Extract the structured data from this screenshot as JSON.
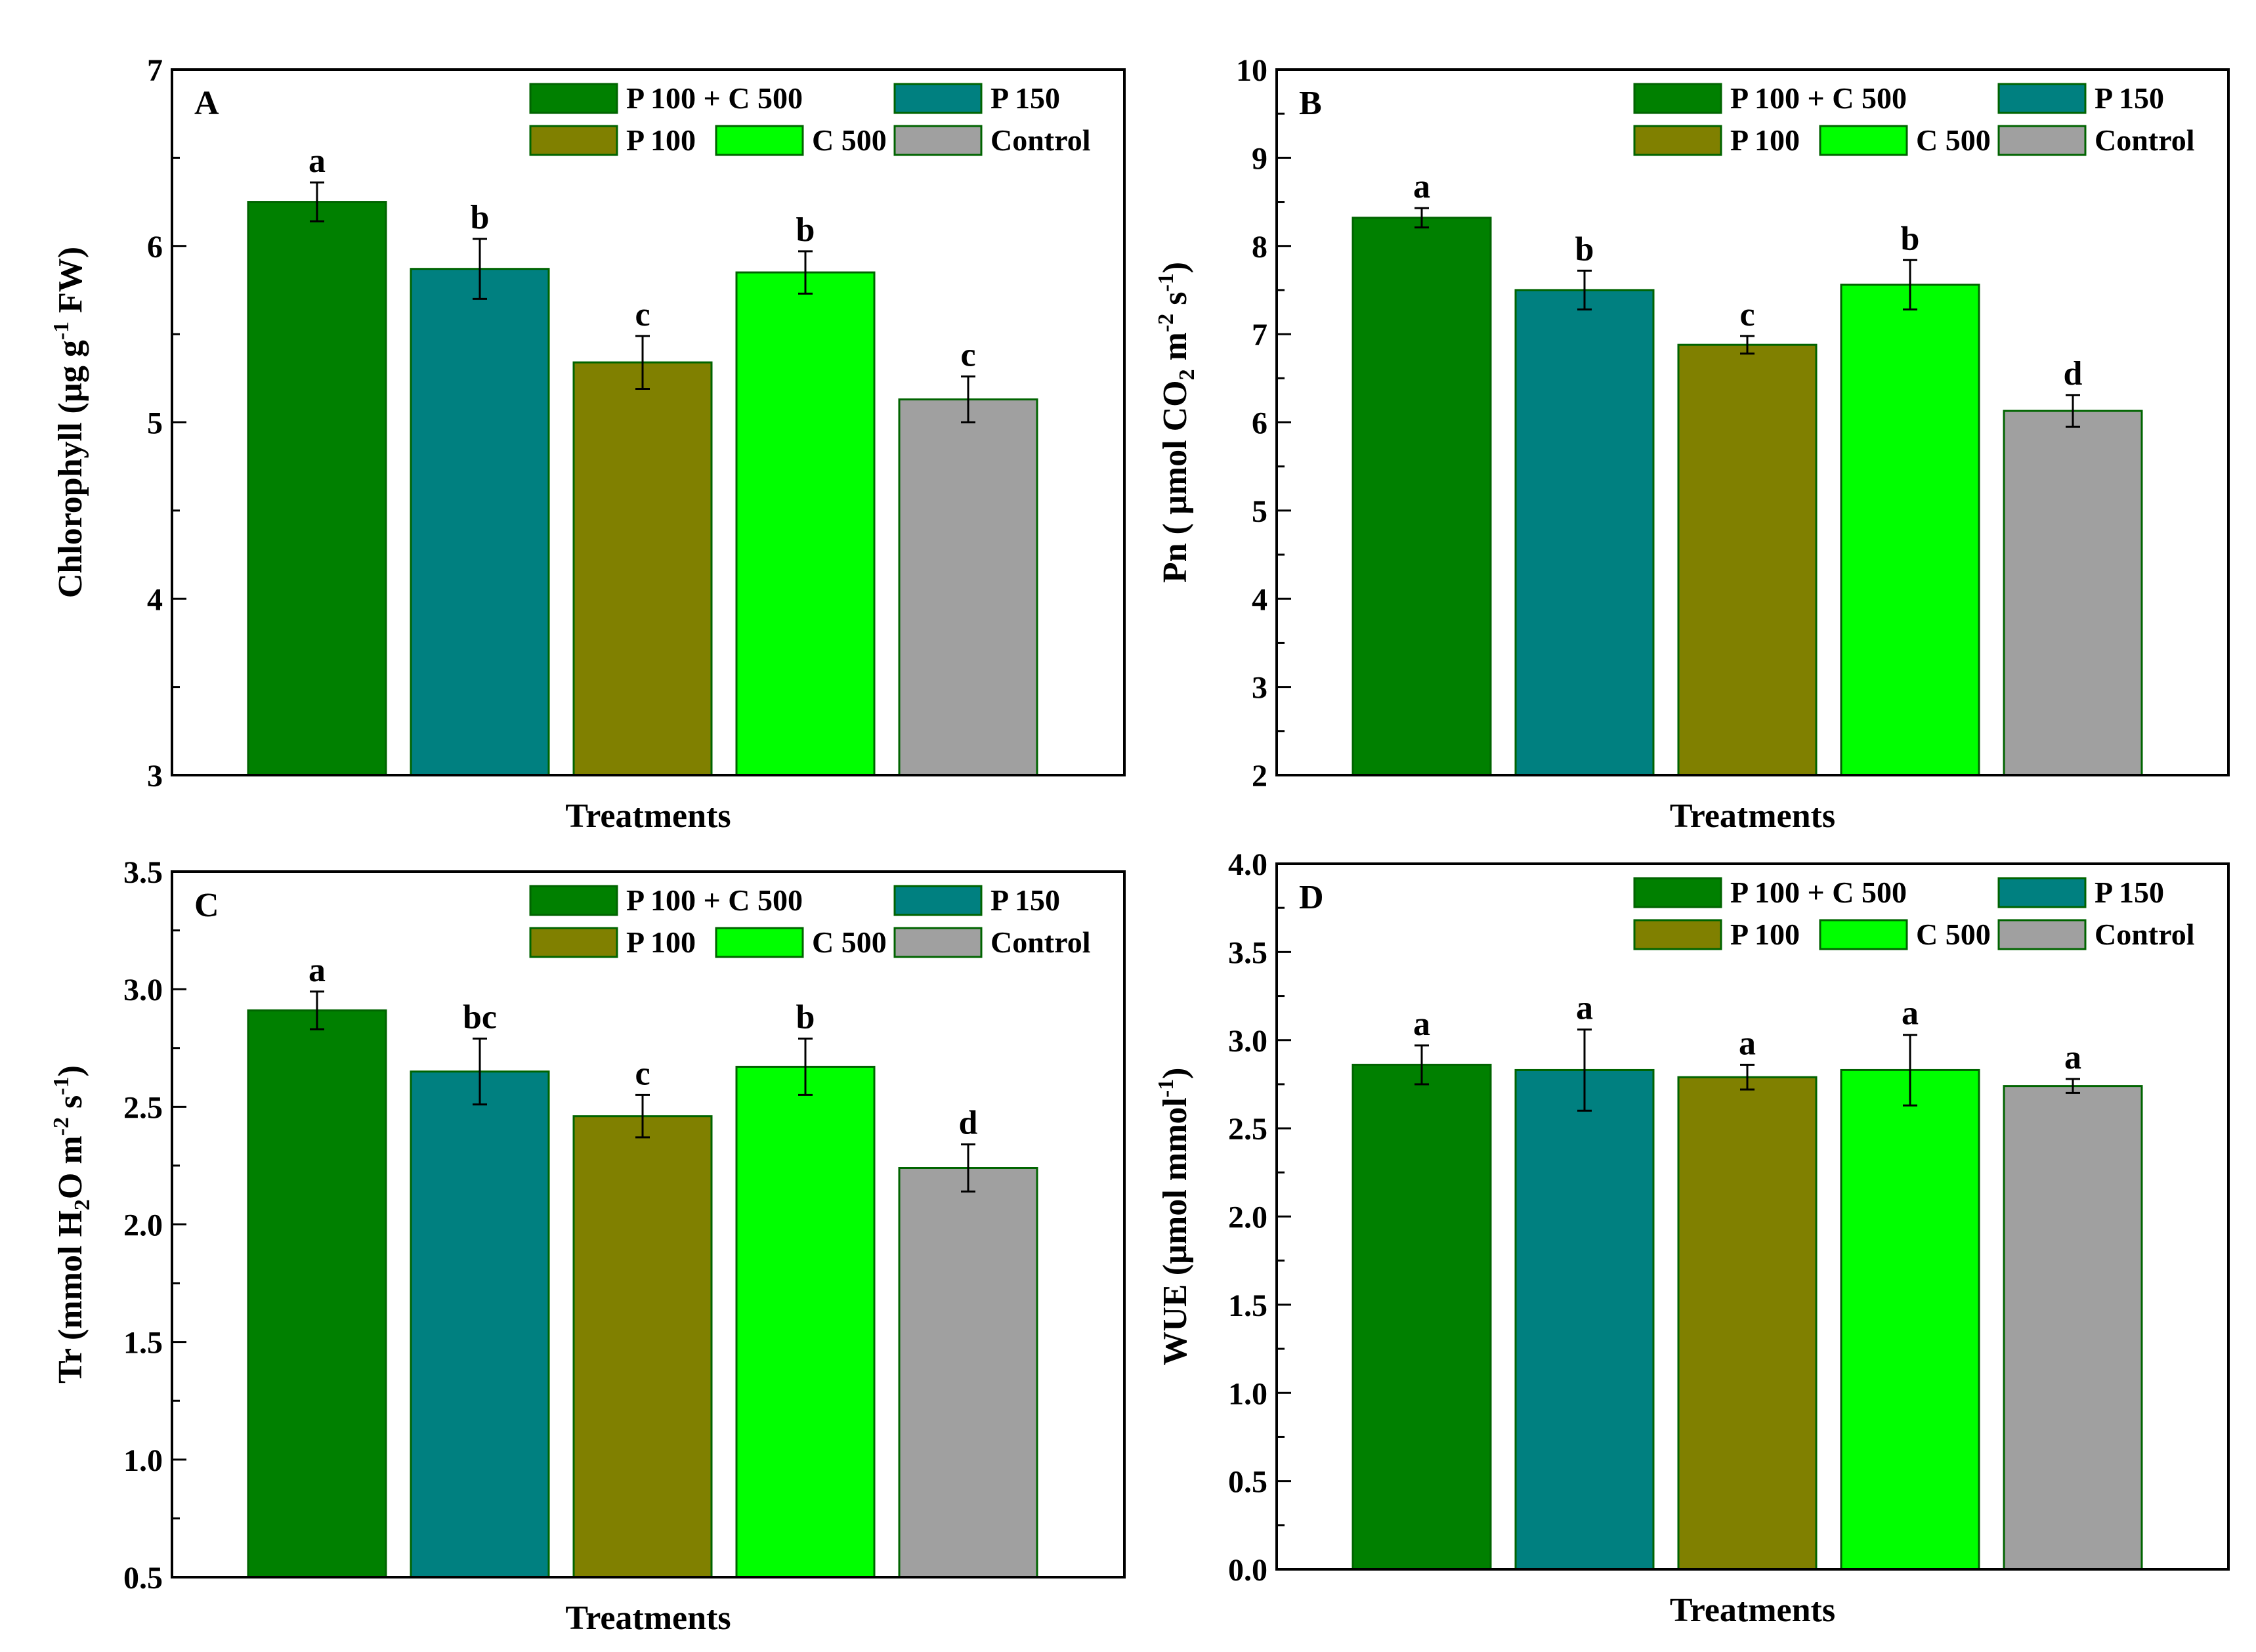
{
  "figure": {
    "legend_items": [
      {
        "label": "P 100 + C 500",
        "color": "#008000"
      },
      {
        "label": "P 150",
        "color": "#008080"
      },
      {
        "label": "P 100",
        "color": "#808000"
      },
      {
        "label": "C 500",
        "color": "#00ff00"
      },
      {
        "label": "Control",
        "color": "#a0a0a0"
      }
    ],
    "bar_border_color": "#006400"
  },
  "chart_data": [
    {
      "type": "bar",
      "panel": "A",
      "xlabel": "Treatments",
      "ylabel": {
        "main": "Chlorophyll (µg g",
        "sup": "-1",
        "tail": " FW)"
      },
      "categories": [
        "P 100 + C 500",
        "P 150",
        "P 100",
        "C 500",
        "Control"
      ],
      "values": [
        6.25,
        5.87,
        5.34,
        5.85,
        5.13
      ],
      "errors": [
        0.11,
        0.17,
        0.15,
        0.12,
        0.13
      ],
      "significance": [
        "a",
        "b",
        "c",
        "b",
        "c"
      ],
      "ylim": [
        3,
        7
      ],
      "yticks": [
        3,
        4,
        5,
        6,
        7
      ],
      "ytick_labels": [
        "3",
        "4",
        "5",
        "6",
        "7"
      ],
      "legend_position": "top-right"
    },
    {
      "type": "bar",
      "panel": "B",
      "xlabel": "Treatments",
      "ylabel": {
        "main": "Pn ( µmol CO",
        "sub": "2",
        "mid": " m",
        "sup": "-2",
        "mid2": " s",
        "sup2": "-1",
        "tail": ")"
      },
      "categories": [
        "P 100 + C 500",
        "P 150",
        "P 100",
        "C 500",
        "Control"
      ],
      "values": [
        8.32,
        7.5,
        6.88,
        7.56,
        6.13
      ],
      "errors": [
        0.11,
        0.22,
        0.1,
        0.28,
        0.18
      ],
      "significance": [
        "a",
        "b",
        "c",
        "b",
        "d"
      ],
      "ylim": [
        2,
        10
      ],
      "yticks": [
        2,
        3,
        4,
        5,
        6,
        7,
        8,
        9,
        10
      ],
      "ytick_labels": [
        "2",
        "3",
        "4",
        "5",
        "6",
        "7",
        "8",
        "9",
        "10"
      ],
      "legend_position": "top-right"
    },
    {
      "type": "bar",
      "panel": "C",
      "xlabel": "Treatments",
      "ylabel": {
        "main": "Tr (mmol H",
        "sub": "2",
        "mid": "O m",
        "sup": "-2",
        "mid2": " s",
        "sup2": "-1",
        "tail": ")"
      },
      "categories": [
        "P 100 + C 500",
        "P 150",
        "P 100",
        "C 500",
        "Control"
      ],
      "values": [
        2.91,
        2.65,
        2.46,
        2.67,
        2.24
      ],
      "errors": [
        0.08,
        0.14,
        0.09,
        0.12,
        0.1
      ],
      "significance": [
        "a",
        "bc",
        "c",
        "b",
        "d"
      ],
      "ylim": [
        0.5,
        3.5
      ],
      "yticks": [
        0.5,
        1.0,
        1.5,
        2.0,
        2.5,
        3.0,
        3.5
      ],
      "ytick_labels": [
        "0.5",
        "1.0",
        "1.5",
        "2.0",
        "2.5",
        "3.0",
        "3.5"
      ],
      "legend_position": "top-right"
    },
    {
      "type": "bar",
      "panel": "D",
      "xlabel": "Treatments",
      "ylabel": {
        "main": "WUE (µmol mmol",
        "sup": "-1",
        "tail": ")"
      },
      "categories": [
        "P 100 + C 500",
        "P 150",
        "P 100",
        "C 500",
        "Control"
      ],
      "values": [
        2.86,
        2.83,
        2.79,
        2.83,
        2.74
      ],
      "errors": [
        0.11,
        0.23,
        0.07,
        0.2,
        0.04
      ],
      "significance": [
        "a",
        "a",
        "a",
        "a",
        "a"
      ],
      "ylim": [
        0.0,
        4.0
      ],
      "yticks": [
        0.0,
        0.5,
        1.0,
        1.5,
        2.0,
        2.5,
        3.0,
        3.5,
        4.0
      ],
      "ytick_labels": [
        "0.0",
        "0.5",
        "1.0",
        "1.5",
        "2.0",
        "2.5",
        "3.0",
        "3.5",
        "4.0"
      ],
      "legend_position": "top-right"
    }
  ]
}
